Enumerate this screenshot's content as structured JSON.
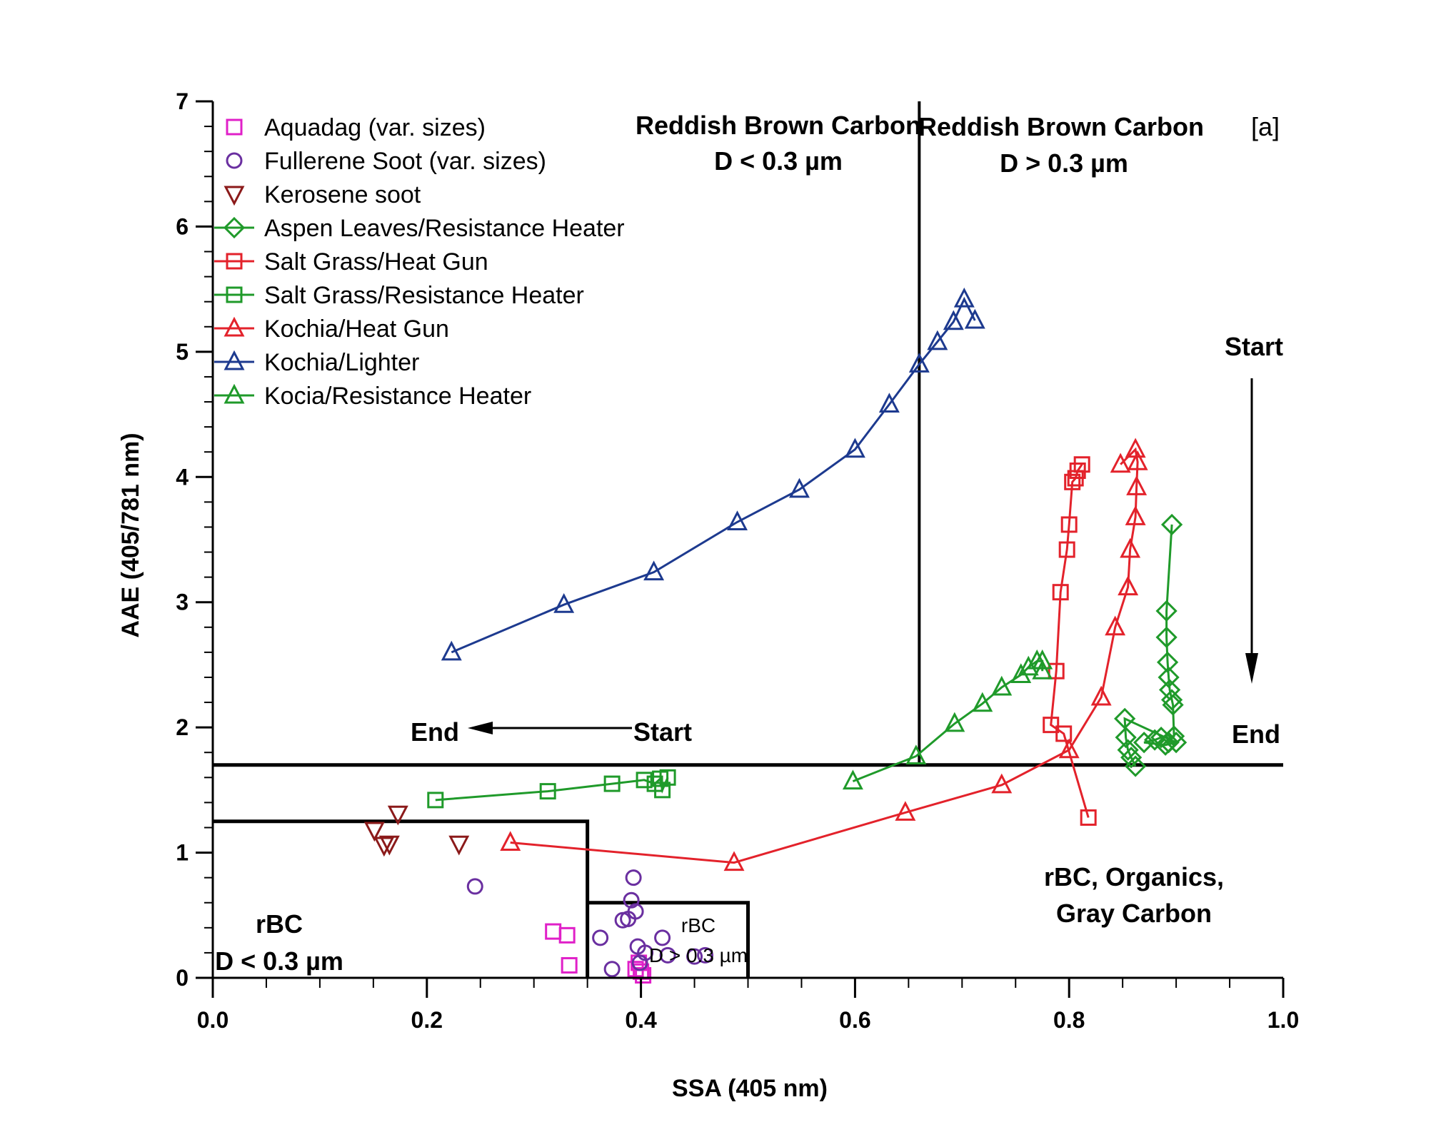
{
  "colors": {
    "magenta": "#e020c8",
    "purple": "#6a2fa0",
    "darkred": "#8b1a1a",
    "green": "#1f9a2a",
    "red": "#e3222b",
    "blue": "#1d3a8f",
    "black": "#000000"
  },
  "chart_data": {
    "type": "scatter",
    "xlabel": "SSA (405 nm)",
    "ylabel": "AAE (405/781 nm)",
    "xlim": [
      0,
      1
    ],
    "ylim": [
      0,
      7
    ],
    "xticks": [
      "0.0",
      "0.2",
      "0.4",
      "0.6",
      "0.8",
      "1.0"
    ],
    "yticks": [
      "0",
      "1",
      "2",
      "3",
      "4",
      "5",
      "6",
      "7"
    ],
    "grid": false,
    "legend_placement": "top-left",
    "panel_label": "[a]",
    "series": [
      {
        "name": "Aquadag (var. sizes)",
        "marker": "square",
        "color": "#e020c8",
        "line": false,
        "points": [
          [
            0.318,
            0.37
          ],
          [
            0.331,
            0.34
          ],
          [
            0.333,
            0.1
          ],
          [
            0.395,
            0.07
          ],
          [
            0.398,
            0.12
          ],
          [
            0.4,
            0.05
          ],
          [
            0.402,
            0.02
          ]
        ]
      },
      {
        "name": "Fullerene Soot (var. sizes)",
        "marker": "circle",
        "color": "#6a2fa0",
        "line": false,
        "points": [
          [
            0.245,
            0.73
          ],
          [
            0.362,
            0.32
          ],
          [
            0.373,
            0.07
          ],
          [
            0.383,
            0.46
          ],
          [
            0.388,
            0.47
          ],
          [
            0.391,
            0.62
          ],
          [
            0.393,
            0.8
          ],
          [
            0.395,
            0.53
          ],
          [
            0.397,
            0.25
          ],
          [
            0.399,
            0.12
          ],
          [
            0.404,
            0.2
          ],
          [
            0.42,
            0.32
          ],
          [
            0.425,
            0.18
          ],
          [
            0.45,
            0.17
          ],
          [
            0.46,
            0.18
          ]
        ]
      },
      {
        "name": "Kerosene soot",
        "marker": "triangle-down",
        "color": "#8b1a1a",
        "line": false,
        "points": [
          [
            0.151,
            1.18
          ],
          [
            0.16,
            1.06
          ],
          [
            0.165,
            1.07
          ],
          [
            0.173,
            1.31
          ],
          [
            0.23,
            1.07
          ]
        ]
      },
      {
        "name": "Aspen Leaves/Resistance Heater",
        "marker": "diamond",
        "color": "#1f9a2a",
        "line": true,
        "points": [
          [
            0.896,
            3.62
          ],
          [
            0.891,
            2.93
          ],
          [
            0.891,
            2.72
          ],
          [
            0.892,
            2.52
          ],
          [
            0.893,
            2.4
          ],
          [
            0.894,
            2.3
          ],
          [
            0.896,
            2.22
          ],
          [
            0.897,
            2.18
          ],
          [
            0.898,
            1.93
          ],
          [
            0.893,
            1.88
          ],
          [
            0.886,
            1.92
          ],
          [
            0.88,
            1.9
          ],
          [
            0.87,
            1.88
          ],
          [
            0.89,
            1.86
          ],
          [
            0.9,
            1.88
          ],
          [
            0.852,
            2.07
          ],
          [
            0.853,
            1.92
          ],
          [
            0.855,
            1.82
          ],
          [
            0.858,
            1.76
          ],
          [
            0.862,
            1.69
          ]
        ]
      },
      {
        "name": "Salt Grass/Heat Gun",
        "marker": "square",
        "color": "#e3222b",
        "line": true,
        "points": [
          [
            0.818,
            1.28
          ],
          [
            0.795,
            1.95
          ],
          [
            0.783,
            2.02
          ],
          [
            0.788,
            2.45
          ],
          [
            0.792,
            3.08
          ],
          [
            0.798,
            3.42
          ],
          [
            0.8,
            3.62
          ],
          [
            0.803,
            3.96
          ],
          [
            0.806,
            3.99
          ],
          [
            0.808,
            4.05
          ],
          [
            0.812,
            4.1
          ]
        ]
      },
      {
        "name": "Salt Grass/Resistance Heater",
        "marker": "square",
        "color": "#1f9a2a",
        "line": true,
        "points": [
          [
            0.208,
            1.42
          ],
          [
            0.313,
            1.49
          ],
          [
            0.373,
            1.55
          ],
          [
            0.403,
            1.58
          ],
          [
            0.413,
            1.55
          ],
          [
            0.418,
            1.59
          ],
          [
            0.42,
            1.5
          ],
          [
            0.425,
            1.6
          ]
        ]
      },
      {
        "name": "Kochia/Heat Gun",
        "marker": "triangle",
        "color": "#e3222b",
        "line": true,
        "points": [
          [
            0.278,
            1.08
          ],
          [
            0.487,
            0.92
          ],
          [
            0.647,
            1.32
          ],
          [
            0.737,
            1.54
          ],
          [
            0.8,
            1.82
          ],
          [
            0.83,
            2.24
          ],
          [
            0.843,
            2.8
          ],
          [
            0.855,
            3.12
          ],
          [
            0.857,
            3.42
          ],
          [
            0.862,
            3.68
          ],
          [
            0.863,
            3.92
          ],
          [
            0.864,
            4.12
          ],
          [
            0.862,
            4.22
          ],
          [
            0.848,
            4.1
          ]
        ]
      },
      {
        "name": "Kochia/Lighter",
        "marker": "triangle",
        "color": "#1d3a8f",
        "line": true,
        "points": [
          [
            0.223,
            2.6
          ],
          [
            0.328,
            2.98
          ],
          [
            0.412,
            3.24
          ],
          [
            0.49,
            3.64
          ],
          [
            0.548,
            3.9
          ],
          [
            0.6,
            4.22
          ],
          [
            0.632,
            4.58
          ],
          [
            0.66,
            4.9
          ],
          [
            0.677,
            5.08
          ],
          [
            0.692,
            5.24
          ],
          [
            0.702,
            5.42
          ],
          [
            0.712,
            5.25
          ]
        ]
      },
      {
        "name": "Kocia/Resistance Heater",
        "marker": "triangle",
        "color": "#1f9a2a",
        "line": true,
        "points": [
          [
            0.598,
            1.57
          ],
          [
            0.657,
            1.77
          ],
          [
            0.693,
            2.03
          ],
          [
            0.719,
            2.19
          ],
          [
            0.737,
            2.32
          ],
          [
            0.755,
            2.42
          ],
          [
            0.762,
            2.48
          ],
          [
            0.77,
            2.53
          ],
          [
            0.775,
            2.53
          ],
          [
            0.775,
            2.45
          ]
        ]
      }
    ],
    "reference_lines": {
      "vertical_x": 0.66,
      "horizontal_y": 1.7
    },
    "boxes": [
      {
        "x": [
          0,
          0.35
        ],
        "y": [
          0,
          1.25
        ]
      },
      {
        "x": [
          0.35,
          0.5
        ],
        "y": [
          0,
          0.6
        ]
      }
    ],
    "annotations": {
      "brc_small_line1": "Reddish Brown Carbon",
      "brc_small_line2": "D < 0.3 µm",
      "brc_large_line1": "Reddish Brown Carbon",
      "brc_large_line2": "D > 0.3 µm",
      "start_top": "Start",
      "end_right": "End",
      "end_left": "End",
      "start_left": "Start",
      "organics_line1": "rBC, Organics,",
      "organics_line2": "Gray Carbon",
      "rbc_small_line1": "rBC",
      "rbc_small_line2": "D < 0.3 µm",
      "rbc_large_line1": "rBC",
      "rbc_large_line2": "D > 0.3 µm"
    }
  }
}
